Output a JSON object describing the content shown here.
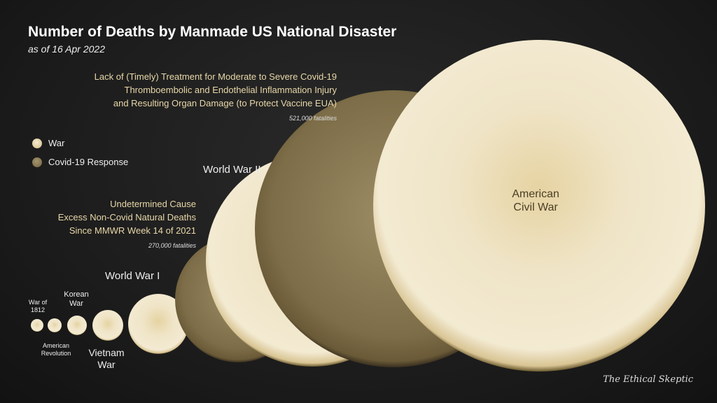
{
  "title": "Number of Deaths by Manmade US National Disaster",
  "subtitle": "as of 16 Apr 2022",
  "legend": [
    {
      "label": "War",
      "color": "#e9dcb5"
    },
    {
      "label": "Covid-19 Response",
      "color": "#8a7a55"
    }
  ],
  "annotations": {
    "covid_treatment": {
      "lines": [
        "Lack of (Timely) Treatment for Moderate to Severe Covid-19",
        "Thromboembolic and Endothelial Inflammation Injury",
        "and Resulting Organ Damage (to Protect Vaccine EUA)"
      ],
      "fatalities": "521,000 fatalities"
    },
    "undetermined": {
      "lines": [
        "Undetermined Cause",
        "Excess Non-Covid Natural Deaths",
        "Since MMWR Week 14 of 2021"
      ],
      "fatalities": "270,000 fatalities"
    }
  },
  "chart_data": {
    "type": "bubble",
    "title": "Number of Deaths by Manmade US National Disaster",
    "subtitle": "as of 16 Apr 2022",
    "legend_placement": "left",
    "bubbles": [
      {
        "name": "War of 1812",
        "category": "War"
      },
      {
        "name": "American Revolution",
        "category": "War"
      },
      {
        "name": "Korean War",
        "category": "War"
      },
      {
        "name": "Vietnam War",
        "category": "War"
      },
      {
        "name": "World War I",
        "category": "War"
      },
      {
        "name": "Undetermined Cause Excess Non-Covid Natural Deaths",
        "category": "Covid-19 Response",
        "value": 270000
      },
      {
        "name": "World War II",
        "category": "War"
      },
      {
        "name": "Lack of (Timely) Treatment for Covid-19",
        "category": "Covid-19 Response",
        "value": 521000
      },
      {
        "name": "American Civil War",
        "category": "War"
      }
    ],
    "labels": {
      "war_1812": "War of 1812",
      "american_revolution": "American Revolution",
      "korean": "Korean War",
      "vietnam": "Vietnam War",
      "ww1": "World War I",
      "ww2": "World War II",
      "civil_war": "American Civil War"
    }
  },
  "signature": "The Ethical Skeptic"
}
